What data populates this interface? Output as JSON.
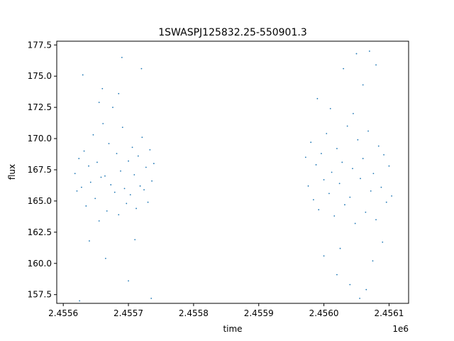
{
  "chart_data": {
    "type": "scatter",
    "title": "1SWASPJ125832.25-550901.3",
    "xlabel": "time",
    "ylabel": "flux",
    "x_offset_label": "1e6",
    "x_axis_multiplier": 1000000,
    "xlim": [
      2.45559,
      2.45613
    ],
    "ylim": [
      156.8,
      177.8
    ],
    "x_ticks": [
      2.4556,
      2.4557,
      2.4558,
      2.4559,
      2.456,
      2.4561
    ],
    "x_tick_labels": [
      "2.4556",
      "2.4557",
      "2.4558",
      "2.4559",
      "2.4560",
      "2.4561"
    ],
    "y_ticks": [
      157.5,
      160.0,
      162.5,
      165.0,
      167.5,
      170.0,
      172.5,
      175.0,
      177.5
    ],
    "y_tick_labels": [
      "157.5",
      "160.0",
      "162.5",
      "165.0",
      "167.5",
      "170.0",
      "172.5",
      "175.0",
      "177.5"
    ],
    "grid": false,
    "legend": "none",
    "color": "#1f77b4",
    "series": [
      {
        "values": [
          [
            2.455618,
            167.2
          ],
          [
            2.455621,
            165.8
          ],
          [
            2.455624,
            168.4
          ],
          [
            2.455628,
            166.1
          ],
          [
            2.455632,
            169.0
          ],
          [
            2.455635,
            164.6
          ],
          [
            2.455639,
            167.8
          ],
          [
            2.455642,
            166.5
          ],
          [
            2.455646,
            170.3
          ],
          [
            2.455649,
            165.2
          ],
          [
            2.455652,
            168.1
          ],
          [
            2.455655,
            163.4
          ],
          [
            2.455658,
            166.9
          ],
          [
            2.455661,
            171.2
          ],
          [
            2.455664,
            167.0
          ],
          [
            2.455667,
            164.2
          ],
          [
            2.45567,
            169.6
          ],
          [
            2.455673,
            166.3
          ],
          [
            2.455676,
            172.5
          ],
          [
            2.455679,
            165.7
          ],
          [
            2.455682,
            168.8
          ],
          [
            2.455685,
            163.9
          ],
          [
            2.455688,
            167.4
          ],
          [
            2.455691,
            170.9
          ],
          [
            2.455694,
            166.0
          ],
          [
            2.455697,
            164.8
          ],
          [
            2.4557,
            168.2
          ],
          [
            2.455703,
            165.5
          ],
          [
            2.455706,
            169.3
          ],
          [
            2.455709,
            167.1
          ],
          [
            2.455712,
            164.4
          ],
          [
            2.455715,
            168.6
          ],
          [
            2.455718,
            166.2
          ],
          [
            2.455721,
            170.1
          ],
          [
            2.455724,
            165.9
          ],
          [
            2.455727,
            167.7
          ],
          [
            2.45573,
            164.9
          ],
          [
            2.455733,
            169.1
          ],
          [
            2.455736,
            166.6
          ],
          [
            2.455739,
            168.0
          ],
          [
            2.45563,
            175.1
          ],
          [
            2.45566,
            174.0
          ],
          [
            2.45569,
            176.5
          ],
          [
            2.45572,
            175.6
          ],
          [
            2.45564,
            161.8
          ],
          [
            2.455665,
            160.4
          ],
          [
            2.4557,
            158.6
          ],
          [
            2.455735,
            157.2
          ],
          [
            2.455655,
            172.9
          ],
          [
            2.455685,
            173.6
          ],
          [
            2.45571,
            161.9
          ],
          [
            2.455625,
            157.0
          ]
        ]
      },
      {
        "values": [
          [
            2.455972,
            168.5
          ],
          [
            2.455976,
            166.2
          ],
          [
            2.45598,
            169.7
          ],
          [
            2.455984,
            165.1
          ],
          [
            2.455988,
            167.9
          ],
          [
            2.455992,
            164.3
          ],
          [
            2.455996,
            168.8
          ],
          [
            2.456,
            166.7
          ],
          [
            2.456004,
            170.4
          ],
          [
            2.456008,
            165.6
          ],
          [
            2.456012,
            167.3
          ],
          [
            2.456016,
            163.8
          ],
          [
            2.45602,
            169.2
          ],
          [
            2.456024,
            166.4
          ],
          [
            2.456028,
            168.1
          ],
          [
            2.456032,
            164.7
          ],
          [
            2.456036,
            171.0
          ],
          [
            2.45604,
            165.3
          ],
          [
            2.456044,
            167.6
          ],
          [
            2.456048,
            163.2
          ],
          [
            2.456052,
            169.9
          ],
          [
            2.456056,
            166.8
          ],
          [
            2.45606,
            168.4
          ],
          [
            2.456064,
            164.1
          ],
          [
            2.456068,
            170.6
          ],
          [
            2.456072,
            165.8
          ],
          [
            2.456076,
            167.2
          ],
          [
            2.45608,
            163.5
          ],
          [
            2.456084,
            169.4
          ],
          [
            2.456088,
            166.1
          ],
          [
            2.456092,
            168.7
          ],
          [
            2.456096,
            164.9
          ],
          [
            2.4561,
            167.8
          ],
          [
            2.456104,
            165.4
          ],
          [
            2.45599,
            173.2
          ],
          [
            2.45601,
            172.4
          ],
          [
            2.45603,
            175.6
          ],
          [
            2.45605,
            176.8
          ],
          [
            2.45606,
            174.3
          ],
          [
            2.45607,
            177.0
          ],
          [
            2.45608,
            175.9
          ],
          [
            2.456,
            160.6
          ],
          [
            2.45602,
            159.1
          ],
          [
            2.45604,
            158.3
          ],
          [
            2.456055,
            157.2
          ],
          [
            2.456065,
            157.9
          ],
          [
            2.456075,
            160.2
          ],
          [
            2.45609,
            161.7
          ],
          [
            2.456045,
            172.0
          ],
          [
            2.456025,
            161.2
          ]
        ]
      }
    ]
  }
}
